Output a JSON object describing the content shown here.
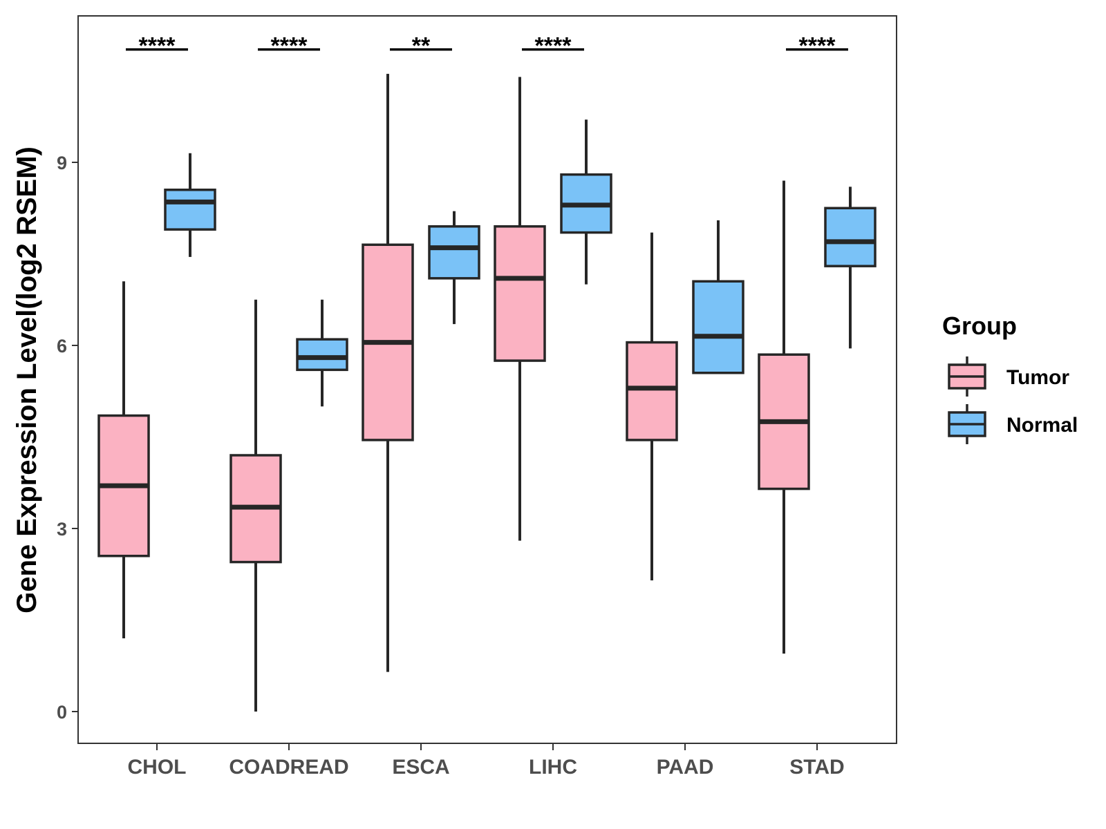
{
  "chart_data": {
    "type": "boxplot",
    "ylabel": "Gene Expression Level(log2 RSEM)",
    "xlabel": "",
    "ylim": [
      -0.5,
      11.4
    ],
    "yticks": [
      0,
      3,
      6,
      9
    ],
    "categories": [
      "CHOL",
      "COADREAD",
      "ESCA",
      "LIHC",
      "PAAD",
      "STAD"
    ],
    "legend": {
      "title": "Group",
      "position": "right",
      "entries": [
        {
          "name": "Tumor",
          "color": "#FBB2C2"
        },
        {
          "name": "Normal",
          "color": "#7AC2F7"
        }
      ]
    },
    "series": [
      {
        "name": "Tumor",
        "color": "#FBB2C2",
        "boxes": [
          {
            "min": 1.2,
            "q1": 2.55,
            "median": 3.7,
            "q3": 4.85,
            "max": 7.05
          },
          {
            "min": 0.0,
            "q1": 2.45,
            "median": 3.35,
            "q3": 4.2,
            "max": 6.75
          },
          {
            "min": 0.65,
            "q1": 4.45,
            "median": 6.05,
            "q3": 7.65,
            "max": 10.45
          },
          {
            "min": 2.8,
            "q1": 5.75,
            "median": 7.1,
            "q3": 7.95,
            "max": 10.4
          },
          {
            "min": 2.15,
            "q1": 4.45,
            "median": 5.3,
            "q3": 6.05,
            "max": 7.85
          },
          {
            "min": 0.95,
            "q1": 3.65,
            "median": 4.75,
            "q3": 5.85,
            "max": 8.7
          }
        ]
      },
      {
        "name": "Normal",
        "color": "#7AC2F7",
        "boxes": [
          {
            "min": 7.45,
            "q1": 7.9,
            "median": 8.35,
            "q3": 8.55,
            "max": 9.15
          },
          {
            "min": 5.0,
            "q1": 5.6,
            "median": 5.8,
            "q3": 6.1,
            "max": 6.75
          },
          {
            "min": 6.35,
            "q1": 7.1,
            "median": 7.6,
            "q3": 7.95,
            "max": 8.2
          },
          {
            "min": 7.0,
            "q1": 7.85,
            "median": 8.3,
            "q3": 8.8,
            "max": 9.7
          },
          {
            "min": 5.55,
            "q1": 5.55,
            "median": 6.15,
            "q3": 7.05,
            "max": 8.05
          },
          {
            "min": 5.95,
            "q1": 7.3,
            "median": 7.7,
            "q3": 8.25,
            "max": 8.6
          }
        ]
      }
    ],
    "significance": [
      {
        "category": "CHOL",
        "label": "****"
      },
      {
        "category": "COADREAD",
        "label": "****"
      },
      {
        "category": "ESCA",
        "label": "**"
      },
      {
        "category": "LIHC",
        "label": "****"
      },
      {
        "category": "PAAD",
        "label": ""
      },
      {
        "category": "STAD",
        "label": "****"
      }
    ],
    "significance_y": 10.85
  }
}
